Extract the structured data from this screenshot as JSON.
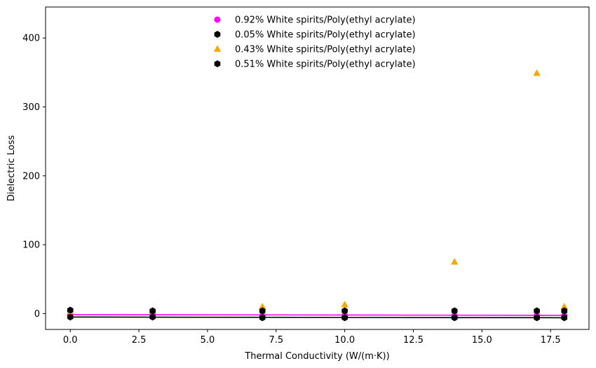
{
  "chart_data": {
    "type": "scatter",
    "title": "",
    "xlabel": "Thermal Conductivity (W/(m·K))",
    "ylabel": "Dielectric Loss",
    "xlim": [
      -0.9,
      18.9
    ],
    "ylim": [
      -23,
      445
    ],
    "xticks": [
      "0.0",
      "2.5",
      "5.0",
      "7.5",
      "10.0",
      "12.5",
      "15.0",
      "17.5"
    ],
    "yticks": [
      "0",
      "100",
      "200",
      "300",
      "400"
    ],
    "grid": false,
    "legend_position": "top-center",
    "series": [
      {
        "name": "0.92% White spirits/Poly(ethyl acrylate)",
        "marker": "circle",
        "color": "#ff00ff",
        "x": [
          0,
          3,
          7,
          10,
          14,
          17,
          18
        ],
        "y": [
          -2,
          -2,
          -3,
          -3,
          -3,
          -3,
          -3
        ],
        "trend": {
          "x": [
            0,
            18
          ],
          "y": [
            -1.5,
            -2.5
          ],
          "color": "#ff00ff"
        }
      },
      {
        "name": "0.05% White spirits/Poly(ethyl acrylate)",
        "marker": "hexagon",
        "color": "#000000",
        "x": [
          0,
          3,
          7,
          10,
          14,
          17,
          18
        ],
        "y": [
          -5,
          -5,
          -6,
          -6,
          -6,
          -6,
          -6
        ],
        "trend": {
          "x": [
            0,
            18
          ],
          "y": [
            -5,
            -6
          ],
          "color": "#000000"
        }
      },
      {
        "name": "0.43% White spirits/Poly(ethyl acrylate)",
        "marker": "triangle",
        "color": "#ffa500",
        "x": [
          0,
          3,
          7,
          10,
          14,
          17,
          18
        ],
        "y": [
          3,
          4,
          10,
          13,
          75,
          349,
          10
        ]
      },
      {
        "name": "0.51% White spirits/Poly(ethyl acrylate)",
        "marker": "hexagon",
        "color": "#000000",
        "x": [
          0,
          3,
          7,
          10,
          14,
          17,
          18
        ],
        "y": [
          5,
          4,
          4,
          4,
          4,
          4,
          4
        ]
      }
    ]
  }
}
